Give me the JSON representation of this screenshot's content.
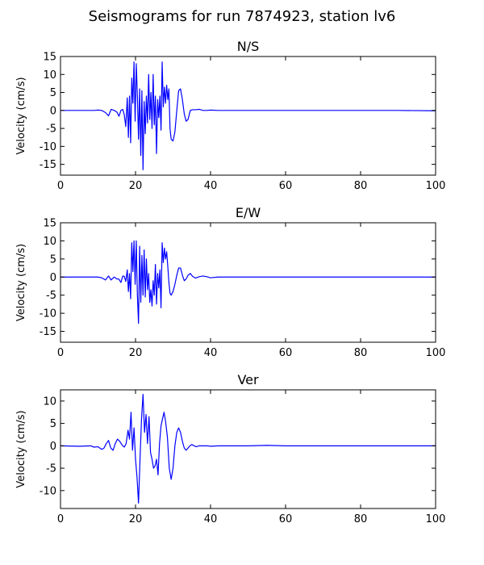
{
  "figure": {
    "title": "Seismograms for run 7874923, station lv6"
  },
  "chart_data": [
    {
      "type": "line",
      "title": "N/S",
      "xlabel": "",
      "ylabel": "Velocity (cm/s)",
      "xlim": [
        0,
        100
      ],
      "ylim": [
        -18,
        15
      ],
      "xticks": [
        0,
        20,
        40,
        60,
        80,
        100
      ],
      "yticks": [
        15,
        10,
        5,
        0,
        -5,
        -10,
        -15
      ],
      "grid": false,
      "color": "#0000ff",
      "series": [
        {
          "x": [
            0,
            5,
            9,
            10,
            11,
            12,
            12.8,
            13.5,
            14.3,
            15,
            15.6,
            16.1,
            16.6,
            17.0,
            17.4,
            17.8,
            18.1,
            18.4,
            18.7,
            19.0,
            19.3,
            19.6,
            19.9,
            20.2,
            20.5,
            20.8,
            21.1,
            21.4,
            21.7,
            22.0,
            22.3,
            22.6,
            22.9,
            23.2,
            23.5,
            23.8,
            24.1,
            24.4,
            24.7,
            25.0,
            25.3,
            25.6,
            25.9,
            26.2,
            26.5,
            26.8,
            27.1,
            27.4,
            27.7,
            28.0,
            28.3,
            28.6,
            28.9,
            29.2,
            29.5,
            30.0,
            30.5,
            31.0,
            31.5,
            32.0,
            32.5,
            33.0,
            33.5,
            34.0,
            34.6,
            35.2,
            36.0,
            37.0,
            38.0,
            39.0,
            40.0,
            42.0,
            45.0,
            50.0,
            60.0,
            70.0,
            80.0,
            90.0,
            100.0
          ],
          "y": [
            0,
            0,
            0,
            0.1,
            0,
            -0.6,
            -1.5,
            0.3,
            0,
            -0.4,
            -1.6,
            0,
            0.3,
            -1.2,
            -4.5,
            3.5,
            -7.5,
            4.0,
            -9.0,
            9.0,
            2.0,
            13.5,
            -3.0,
            13.0,
            4.0,
            -8.0,
            6.0,
            -12.5,
            5.5,
            -16.5,
            2.5,
            -6.5,
            4.0,
            -3.5,
            10.0,
            -2.5,
            5.0,
            -5.0,
            10.0,
            -4.0,
            4.0,
            -12.0,
            3.0,
            -2.0,
            4.0,
            -5.5,
            13.5,
            1.0,
            6.5,
            2.0,
            7.0,
            3.0,
            6.0,
            -5.0,
            -8.0,
            -8.5,
            -6.0,
            0.0,
            5.5,
            6.0,
            3.0,
            -1.0,
            -3.0,
            -2.5,
            0.0,
            0.2,
            0.2,
            0.3,
            0.0,
            0.0,
            0.1,
            0.0,
            0.0,
            0.0,
            0.0,
            0.0,
            0.0,
            0.0,
            -0.1
          ]
        }
      ]
    },
    {
      "type": "line",
      "title": "E/W",
      "xlabel": "",
      "ylabel": "Velocity (cm/s)",
      "xlim": [
        0,
        100
      ],
      "ylim": [
        -18,
        15
      ],
      "xticks": [
        0,
        20,
        40,
        60,
        80,
        100
      ],
      "yticks": [
        15,
        10,
        5,
        0,
        -5,
        -10,
        -15
      ],
      "grid": false,
      "color": "#0000ff",
      "series": [
        {
          "x": [
            0,
            5,
            9,
            10,
            11,
            12,
            12.8,
            13.5,
            14.3,
            15,
            15.6,
            16.1,
            16.6,
            17.0,
            17.4,
            17.8,
            18.1,
            18.4,
            18.7,
            19.0,
            19.3,
            19.6,
            19.9,
            20.2,
            20.5,
            20.8,
            21.1,
            21.4,
            21.7,
            22.0,
            22.3,
            22.6,
            22.9,
            23.2,
            23.5,
            23.8,
            24.1,
            24.4,
            24.7,
            25.0,
            25.3,
            25.6,
            25.9,
            26.2,
            26.5,
            26.8,
            27.1,
            27.4,
            27.7,
            28.0,
            28.3,
            28.6,
            28.9,
            29.2,
            29.5,
            30.0,
            30.5,
            31.0,
            31.5,
            32.0,
            32.5,
            33.0,
            33.5,
            34.0,
            34.6,
            35.2,
            36.0,
            37.0,
            38.0,
            39.0,
            40.0,
            42.0,
            45.0,
            50.0,
            60.0,
            70.0,
            80.0,
            90.0,
            100.0
          ],
          "y": [
            0,
            0,
            0,
            0,
            -0.2,
            -0.8,
            0.3,
            -0.8,
            0,
            -0.5,
            -0.6,
            -1.5,
            0.3,
            0.2,
            -1.2,
            2.0,
            -4.0,
            1.0,
            -6.0,
            9.5,
            1.5,
            10.0,
            -2.0,
            10.0,
            -5.0,
            -12.8,
            8.5,
            -7.0,
            6.0,
            -5.0,
            7.5,
            -5.5,
            5.0,
            -3.5,
            1.0,
            -7.0,
            -3.5,
            -8.0,
            -1.0,
            -5.0,
            3.5,
            -7.5,
            1.0,
            -3.0,
            2.0,
            -8.5,
            9.5,
            4.0,
            8.0,
            5.0,
            7.0,
            3.0,
            -1.5,
            -4.5,
            -5.0,
            -4.0,
            -2.0,
            0.5,
            2.5,
            2.5,
            0.5,
            -1.0,
            -0.5,
            0.5,
            1.0,
            0.2,
            -0.3,
            0.1,
            0.3,
            0.1,
            -0.2,
            0.0,
            0.0,
            0.0,
            0.0,
            0.0,
            0.0,
            0.0,
            0.0
          ]
        }
      ]
    },
    {
      "type": "line",
      "title": "Ver",
      "xlabel": "",
      "ylabel": "Velocity (cm/s)",
      "xlim": [
        0,
        100
      ],
      "ylim": [
        -14,
        12.5
      ],
      "xticks": [
        0,
        20,
        40,
        60,
        80,
        100
      ],
      "yticks": [
        10,
        5,
        0,
        -5,
        -10
      ],
      "grid": false,
      "color": "#0000ff",
      "series": [
        {
          "x": [
            0,
            5,
            8,
            9,
            10,
            11,
            11.6,
            12.2,
            12.8,
            13.4,
            14.0,
            14.6,
            15.2,
            15.8,
            16.4,
            17.0,
            17.5,
            18.0,
            18.4,
            18.8,
            19.2,
            19.6,
            20.0,
            20.4,
            20.8,
            21.2,
            21.6,
            22.0,
            22.4,
            22.8,
            23.2,
            23.6,
            24.0,
            24.4,
            24.8,
            25.2,
            25.6,
            26.0,
            26.4,
            26.8,
            27.2,
            27.6,
            28.0,
            28.5,
            29.0,
            29.5,
            30.0,
            30.5,
            31.0,
            31.5,
            32.0,
            32.5,
            33.0,
            33.5,
            34.0,
            34.5,
            35.0,
            35.6,
            36.2,
            37.0,
            38.0,
            39.0,
            40.0,
            42.0,
            45.0,
            50.0,
            55.0,
            60.0,
            70.0,
            80.0,
            90.0,
            100.0
          ],
          "y": [
            0,
            -0.1,
            0,
            -0.3,
            -0.2,
            -0.8,
            -0.5,
            0.5,
            1.2,
            -0.5,
            -1.0,
            0.5,
            1.5,
            1.0,
            0.2,
            -0.3,
            0.5,
            3.5,
            1.5,
            7.5,
            -1.0,
            4.0,
            -3.0,
            -7.0,
            -12.8,
            -3.0,
            6.0,
            11.5,
            3.0,
            7.0,
            0.5,
            6.5,
            -1.5,
            -3.0,
            -5.0,
            -4.5,
            -3.0,
            -6.5,
            0.5,
            4.5,
            6.0,
            7.5,
            5.5,
            2.0,
            -5.0,
            -7.5,
            -5.0,
            0.0,
            3.0,
            4.0,
            3.0,
            1.0,
            -0.5,
            -1.0,
            -0.5,
            0.0,
            0.3,
            0.0,
            -0.2,
            0.0,
            0.0,
            0.0,
            -0.1,
            0.0,
            0.0,
            0.0,
            0.1,
            0.0,
            0.0,
            0.0,
            0.0,
            0.0
          ]
        }
      ]
    }
  ]
}
